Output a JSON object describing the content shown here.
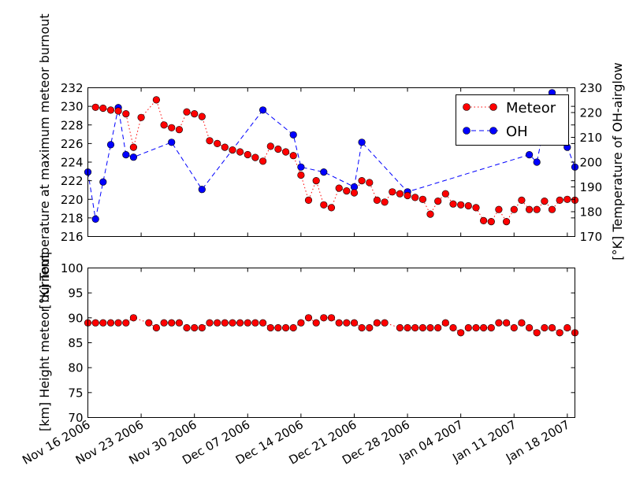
{
  "chart_data": [
    {
      "type": "line",
      "panel": "top",
      "ylabel_left": "[°K] Temperature at maximum meteor burnout",
      "ylabel_right": "[°K] Temperature of OH-airglow",
      "ylim_left": [
        216,
        232
      ],
      "ylim_right": [
        170,
        230
      ],
      "yticks_left": [
        "216",
        "218",
        "220",
        "222",
        "224",
        "226",
        "228",
        "230",
        "232"
      ],
      "yticks_right": [
        "170",
        "180",
        "190",
        "200",
        "210",
        "220",
        "230"
      ],
      "xlim": [
        "2006-11-16",
        "2007-01-19"
      ],
      "legend_position": "top-right",
      "series": [
        {
          "name": "Meteor",
          "axis": "left",
          "color": "#ff0000",
          "line_style": "dotted",
          "marker": "circle",
          "x": [
            "2006-11-17",
            "2006-11-18",
            "2006-11-19",
            "2006-11-20",
            "2006-11-21",
            "2006-11-22",
            "2006-11-23",
            "2006-11-25",
            "2006-11-26",
            "2006-11-27",
            "2006-11-28",
            "2006-11-29",
            "2006-11-30",
            "2006-12-01",
            "2006-12-02",
            "2006-12-03",
            "2006-12-04",
            "2006-12-05",
            "2006-12-06",
            "2006-12-07",
            "2006-12-08",
            "2006-12-09",
            "2006-12-10",
            "2006-12-11",
            "2006-12-12",
            "2006-12-13",
            "2006-12-14",
            "2006-12-15",
            "2006-12-16",
            "2006-12-17",
            "2006-12-18",
            "2006-12-19",
            "2006-12-20",
            "2006-12-21",
            "2006-12-22",
            "2006-12-23",
            "2006-12-24",
            "2006-12-25",
            "2006-12-26",
            "2006-12-27",
            "2006-12-28",
            "2006-12-29",
            "2006-12-30",
            "2006-12-31",
            "2007-01-01",
            "2007-01-02",
            "2007-01-03",
            "2007-01-04",
            "2007-01-05",
            "2007-01-06",
            "2007-01-07",
            "2007-01-08",
            "2007-01-09",
            "2007-01-10",
            "2007-01-11",
            "2007-01-12",
            "2007-01-13",
            "2007-01-14",
            "2007-01-15",
            "2007-01-16",
            "2007-01-17",
            "2007-01-18",
            "2007-01-19"
          ],
          "values": [
            229.9,
            229.8,
            229.6,
            229.5,
            229.2,
            225.6,
            228.8,
            230.7,
            228.0,
            227.7,
            227.5,
            229.4,
            229.2,
            228.9,
            226.3,
            226.0,
            225.6,
            225.3,
            225.1,
            224.8,
            224.5,
            224.1,
            225.7,
            225.4,
            225.1,
            224.7,
            222.6,
            219.9,
            222.0,
            219.4,
            219.1,
            221.2,
            220.9,
            220.7,
            222.0,
            221.8,
            219.9,
            219.7,
            220.8,
            220.6,
            220.4,
            220.2,
            220.0,
            218.4,
            219.8,
            220.6,
            219.5,
            219.4,
            219.3,
            219.1,
            217.7,
            217.6,
            218.9,
            217.6,
            218.9,
            219.9,
            218.9,
            218.9,
            219.8,
            218.9,
            219.9,
            220.0,
            219.9
          ]
        },
        {
          "name": "OH",
          "axis": "right",
          "color": "#0000ff",
          "line_style": "dashed",
          "marker": "circle",
          "x": [
            "2006-11-16",
            "2006-11-17",
            "2006-11-18",
            "2006-11-19",
            "2006-11-20",
            "2006-11-21",
            "2006-11-22",
            "2006-11-27",
            "2006-12-01",
            "2006-12-09",
            "2006-12-13",
            "2006-12-14",
            "2006-12-17",
            "2006-12-21",
            "2006-12-22",
            "2006-12-28",
            "2007-01-13",
            "2007-01-14",
            "2007-01-15",
            "2007-01-16",
            "2007-01-18",
            "2007-01-19"
          ],
          "values": [
            196,
            177,
            192,
            207,
            222,
            203,
            202,
            208,
            189,
            221,
            211,
            198,
            196,
            190,
            208,
            188,
            203,
            200,
            215,
            228,
            206,
            198
          ]
        }
      ]
    },
    {
      "type": "scatter",
      "panel": "bottom",
      "ylabel": "[km] Height meteor burnout",
      "ylim": [
        70,
        100
      ],
      "yticks": [
        "70",
        "75",
        "80",
        "85",
        "90",
        "95",
        "100"
      ],
      "xlim": [
        "2006-11-16",
        "2007-01-19"
      ],
      "xticks": [
        "Nov 16 2006",
        "Nov 23 2006",
        "Nov 30 2006",
        "Dec 07 2006",
        "Dec 14 2006",
        "Dec 21 2006",
        "Dec 28 2006",
        "Jan 04 2007",
        "Jan 11 2007",
        "Jan 18 2007"
      ],
      "series": [
        {
          "name": "Meteor",
          "color": "#ff0000",
          "line_style": "dotted",
          "marker": "circle",
          "x": [
            "2006-11-16",
            "2006-11-17",
            "2006-11-18",
            "2006-11-19",
            "2006-11-20",
            "2006-11-21",
            "2006-11-22",
            "2006-11-24",
            "2006-11-25",
            "2006-11-26",
            "2006-11-27",
            "2006-11-28",
            "2006-11-29",
            "2006-11-30",
            "2006-12-01",
            "2006-12-02",
            "2006-12-03",
            "2006-12-04",
            "2006-12-05",
            "2006-12-06",
            "2006-12-07",
            "2006-12-08",
            "2006-12-09",
            "2006-12-10",
            "2006-12-11",
            "2006-12-12",
            "2006-12-13",
            "2006-12-14",
            "2006-12-15",
            "2006-12-16",
            "2006-12-17",
            "2006-12-18",
            "2006-12-19",
            "2006-12-20",
            "2006-12-21",
            "2006-12-22",
            "2006-12-23",
            "2006-12-24",
            "2006-12-25",
            "2006-12-27",
            "2006-12-28",
            "2006-12-29",
            "2006-12-30",
            "2006-12-31",
            "2007-01-01",
            "2007-01-02",
            "2007-01-03",
            "2007-01-04",
            "2007-01-05",
            "2007-01-06",
            "2007-01-07",
            "2007-01-08",
            "2007-01-09",
            "2007-01-10",
            "2007-01-11",
            "2007-01-12",
            "2007-01-13",
            "2007-01-14",
            "2007-01-15",
            "2007-01-16",
            "2007-01-17",
            "2007-01-18",
            "2007-01-19"
          ],
          "values": [
            89,
            89,
            89,
            89,
            89,
            89,
            90,
            89,
            88,
            89,
            89,
            89,
            88,
            88,
            88,
            89,
            89,
            89,
            89,
            89,
            89,
            89,
            89,
            88,
            88,
            88,
            88,
            89,
            90,
            89,
            90,
            90,
            89,
            89,
            89,
            88,
            88,
            89,
            89,
            88,
            88,
            88,
            88,
            88,
            88,
            89,
            88,
            87,
            88,
            88,
            88,
            88,
            89,
            89,
            88,
            89,
            88,
            87,
            88,
            88,
            87,
            88,
            87
          ]
        }
      ]
    }
  ],
  "legend": {
    "meteor_label": "Meteor",
    "oh_label": "OH"
  }
}
